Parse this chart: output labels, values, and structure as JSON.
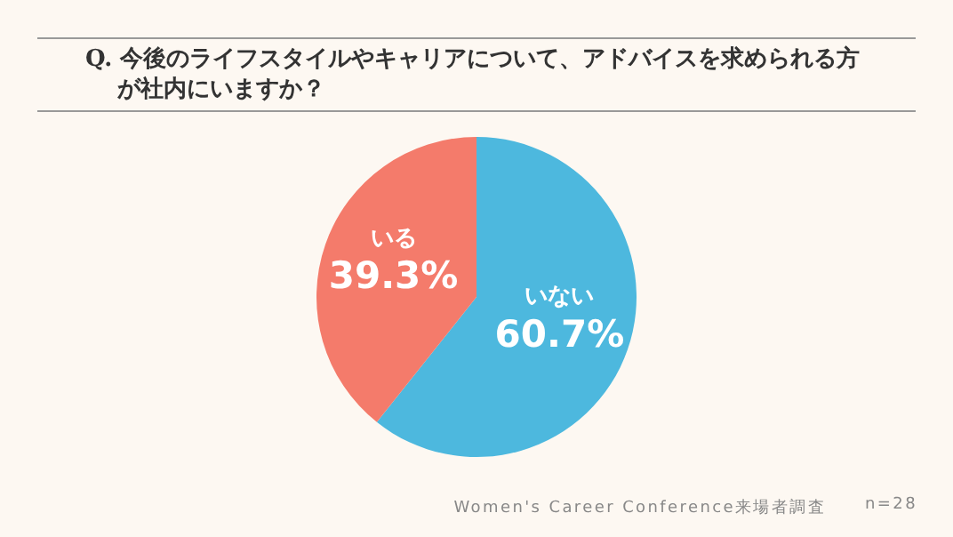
{
  "chart_data": {
    "type": "pie",
    "title": "Q. 今後のライフスタイルやキャリアについて、アドバイスを求められる方が社内にいますか？",
    "categories": [
      "いない",
      "いる"
    ],
    "values": [
      60.7,
      39.3
    ],
    "colors": [
      "#4db8de",
      "#f47b6b"
    ],
    "value_labels": [
      "60.7%",
      "39.3%"
    ],
    "legend": false,
    "annotations": [
      "Women's Career Conference来場者調査",
      "n=28"
    ]
  }
}
